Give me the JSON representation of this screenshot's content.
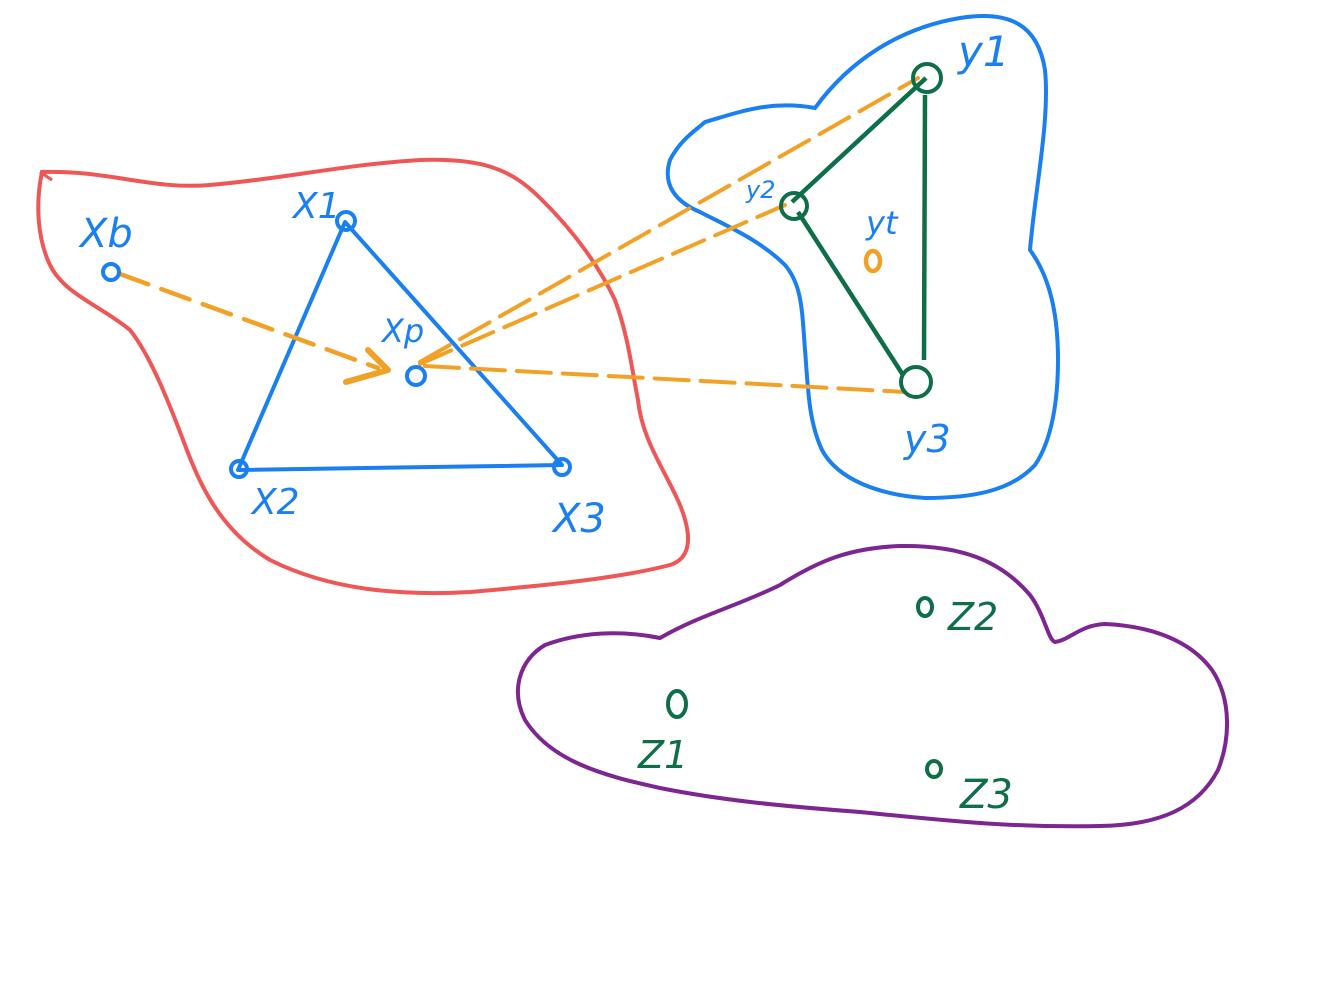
{
  "colors": {
    "red_region": "#ef5656",
    "blue_region": "#1a7ff0",
    "purple_region": "#7d2590",
    "blue_ink": "#1a7ff0",
    "green_ink": "#0e6e48",
    "orange_ink": "#f2a127",
    "background": "#ffffff"
  },
  "labels": {
    "xb": "Xb",
    "x1": "X1",
    "x2": "X2",
    "x3": "X3",
    "xp": "Xp",
    "y1": "y1",
    "y2": "y2",
    "y3": "y3",
    "yt": "yt",
    "z1": "Z1",
    "z2": "Z2",
    "z3": "Z3"
  }
}
